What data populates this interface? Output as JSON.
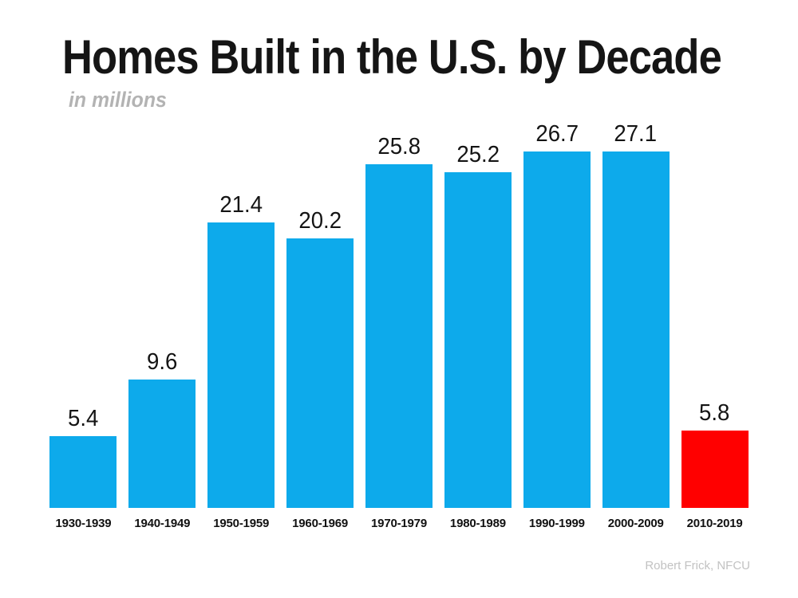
{
  "credit": "Robert Frick, NFCU",
  "chart_data": {
    "type": "bar",
    "title": "Homes Built in the U.S. by Decade",
    "subtitle": "in millions",
    "categories": [
      "1930-1939",
      "1940-1949",
      "1950-1959",
      "1960-1969",
      "1970-1979",
      "1980-1989",
      "1990-1999",
      "2000-2009",
      "2010-2019"
    ],
    "values": [
      5.4,
      9.6,
      21.4,
      20.2,
      25.8,
      25.2,
      26.7,
      27.1,
      5.8
    ],
    "value_labels": [
      "5.4",
      "9.6",
      "21.4",
      "20.2",
      "25.8",
      "25.2",
      "26.7",
      "27.1",
      "5.8"
    ],
    "xlabel": "",
    "ylabel": "",
    "ylim": [
      0,
      29
    ],
    "grid": false,
    "legend": "none",
    "data_labels": true,
    "bar_color": "#0daaeb",
    "highlight_color": "#ff0000",
    "highlight_index": 8,
    "title_color": "#151515",
    "subtitle_color": "#b3b3b3",
    "label_color": "#111111"
  }
}
